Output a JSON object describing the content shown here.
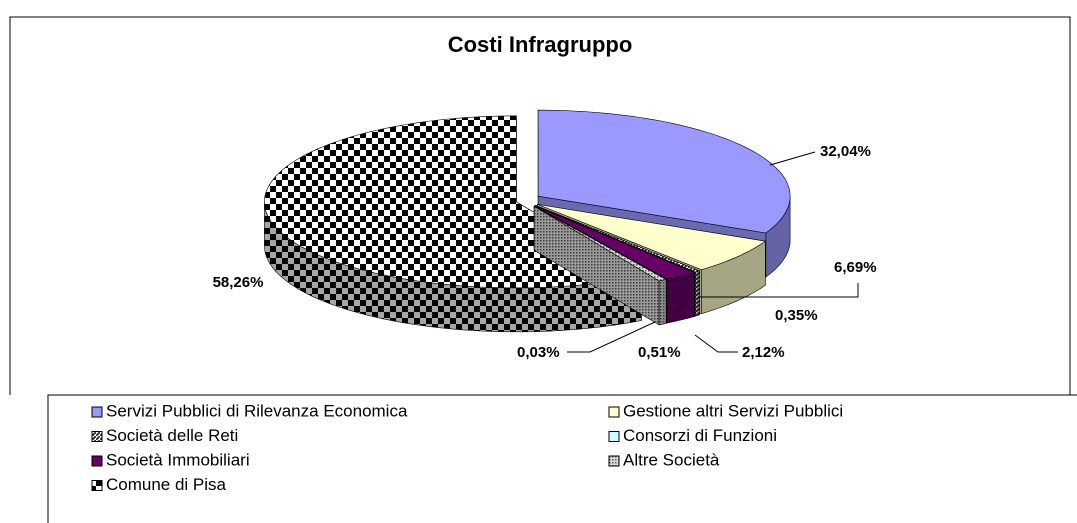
{
  "chart_data": {
    "type": "pie3d",
    "title": "Costi Infragruppo",
    "categories": [
      "Servizi Pubblici di Rilevanza Economica",
      "Gestione altri Servizi Pubblici",
      "Società delle Reti",
      "Consorzi di Funzioni",
      "Società Immobiliari",
      "Altre Società",
      "Comune di Pisa"
    ],
    "values": [
      32.04,
      6.69,
      0.35,
      0.03,
      2.12,
      0.51,
      58.26
    ],
    "value_labels": [
      "32,04%",
      "6,69%",
      "0,35%",
      "0,03%",
      "2,12%",
      "0,51%",
      "58,26%"
    ],
    "colors": [
      "#9999ff",
      "#ffffcc",
      "#333333",
      "#ccffff",
      "#660066",
      "#999999",
      "#000000"
    ],
    "patterns": [
      "solid",
      "solid",
      "hatch",
      "solid",
      "solid",
      "dots",
      "checker"
    ]
  }
}
